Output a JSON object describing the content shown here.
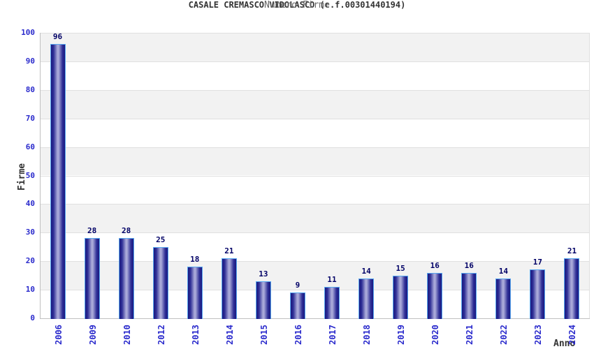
{
  "chart_data": {
    "type": "bar",
    "title": "CASALE CREMASCO VIDOLASCO (c.f.00301440194)",
    "subtitle": "Numero Firme",
    "xlabel": "Anno",
    "ylabel": "Firme",
    "categories": [
      "2006",
      "2009",
      "2010",
      "2012",
      "2013",
      "2014",
      "2015",
      "2016",
      "2017",
      "2018",
      "2019",
      "2020",
      "2021",
      "2022",
      "2023",
      "2024"
    ],
    "values": [
      96,
      28,
      28,
      25,
      18,
      21,
      13,
      9,
      11,
      14,
      15,
      16,
      16,
      14,
      17,
      21
    ],
    "ylim": [
      0,
      100
    ],
    "ytick_step": 10,
    "ytick_labels": [
      "0",
      "10",
      "20",
      "30",
      "40",
      "50",
      "60",
      "70",
      "80",
      "90",
      "100"
    ],
    "grid": true,
    "legend": "none",
    "bar_value_labels_shown": true,
    "colors": {
      "title": "#333333",
      "subtitle": "#666666",
      "axis_label": "#333333",
      "tick_label": "#2a2acc",
      "value_label": "#000066",
      "band": "#f2f2f2",
      "gridline": "#e0e0e0",
      "axis_line": "#c0c0c0",
      "bar_border": "#58a8f0",
      "bar_dark": "#191980",
      "bar_mid": "#2e2e96",
      "bar_light": "#a8a8d8"
    }
  }
}
